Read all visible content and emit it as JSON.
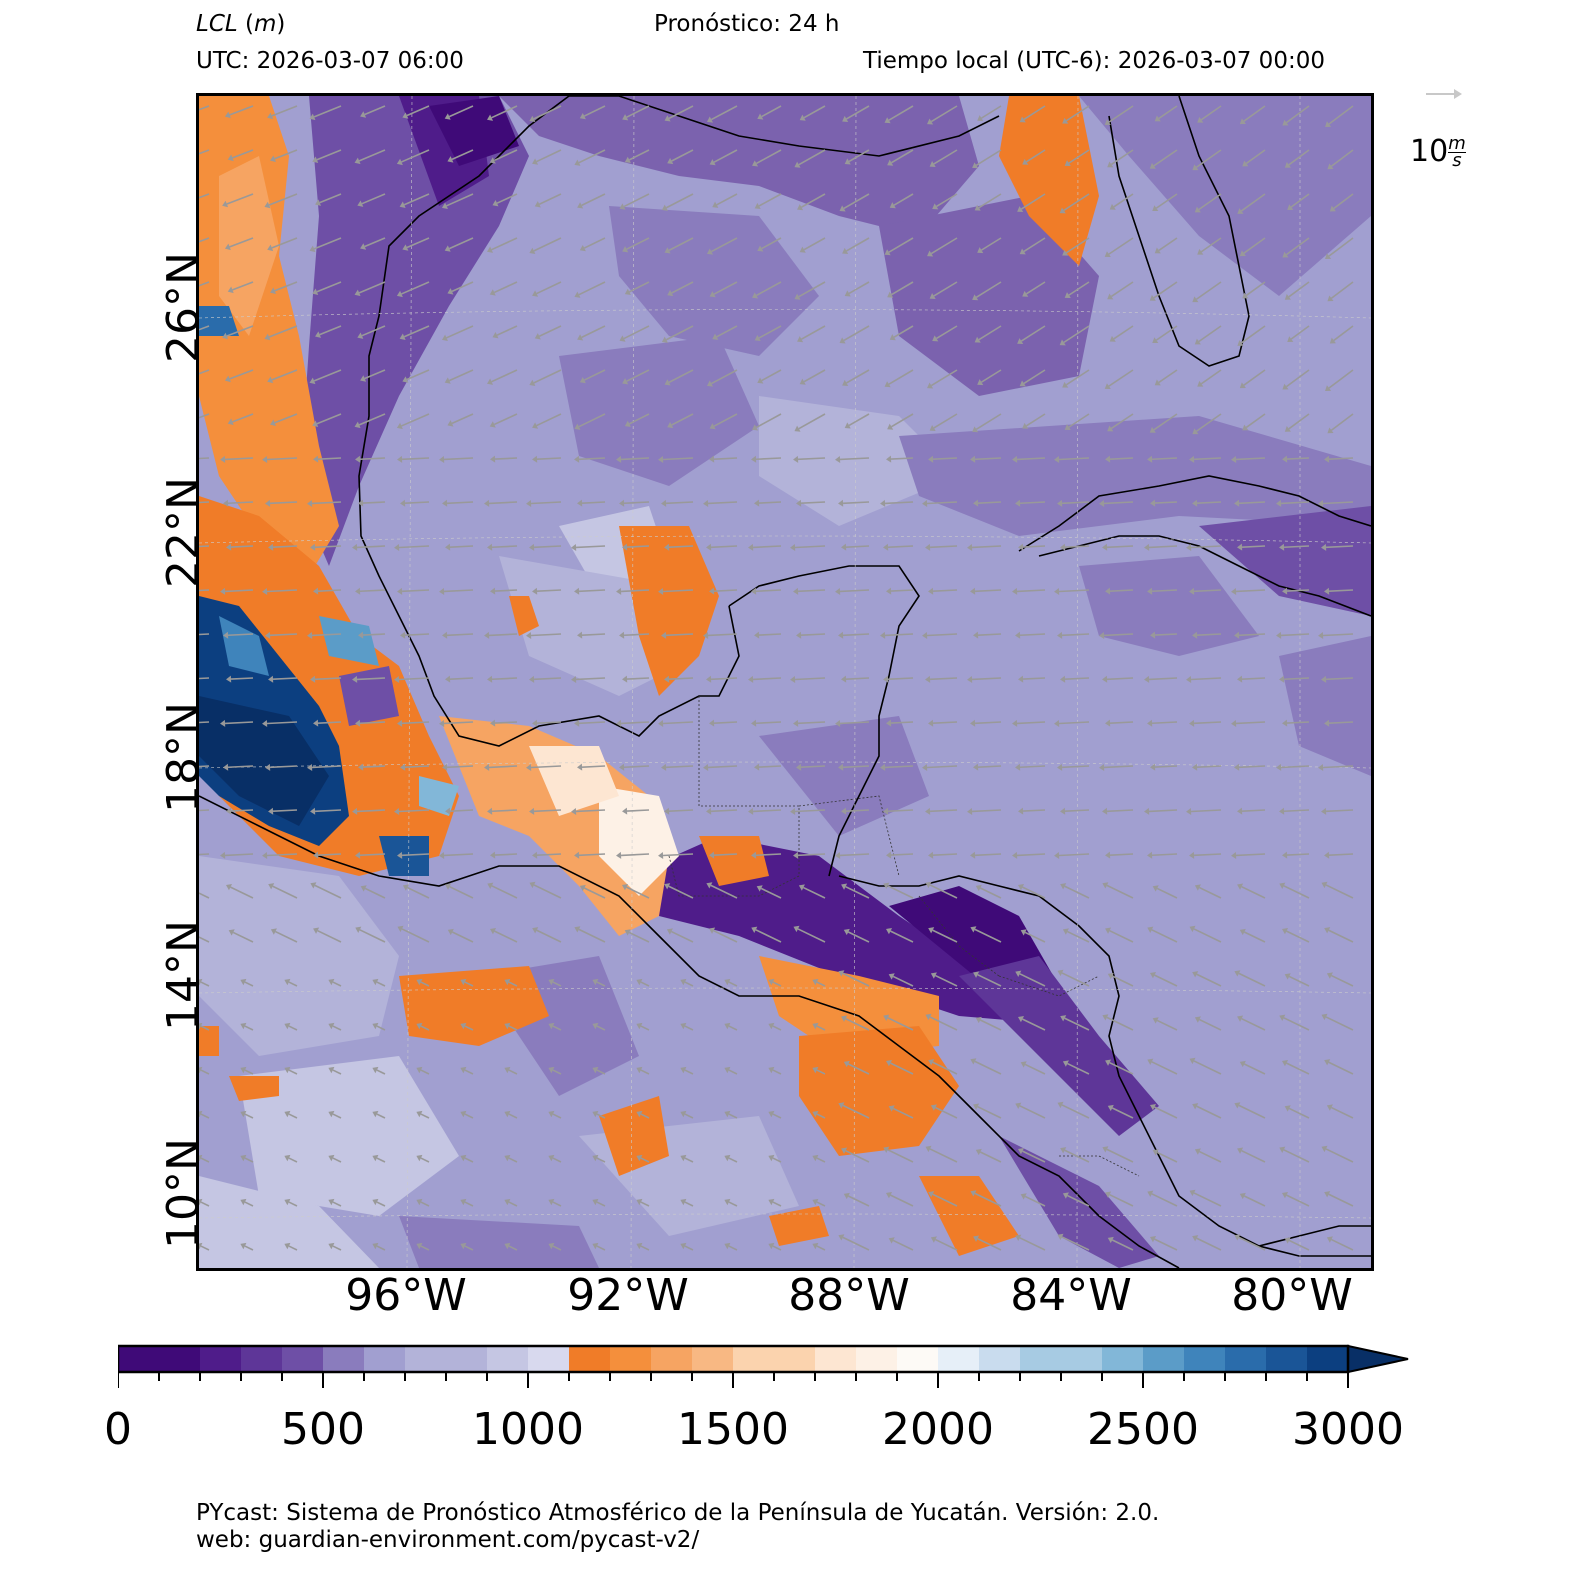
{
  "header": {
    "variable_name": "LCL",
    "variable_unit": "m",
    "forecast_label": "Pronóstico: 24 h",
    "utc_label": "UTC:  2026-03-07 06:00",
    "local_time_label": "Tiempo local (UTC-6): 2026-03-07 00:00"
  },
  "map": {
    "lat_labels": [
      "26°N",
      "22°N",
      "18°N",
      "14°N",
      "10°N"
    ],
    "lon_labels": [
      "96°W",
      "92°W",
      "88°W",
      "84°W",
      "80°W"
    ],
    "region": "Gulf of Mexico, southern Mexico, Yucatán Peninsula, Central America, Cuba, Florida",
    "wind_direction": "predominantly easterly to northeasterly (arrows pointing west/southwest)",
    "wind_arrow_color": "#999999",
    "coastline_color": "#000000"
  },
  "reference_vector": {
    "value": "10",
    "unit_num": "m",
    "unit_den": "s"
  },
  "colorbar": {
    "min": 0,
    "max": 3000,
    "step": 100,
    "tick_labels": [
      "0",
      "500",
      "1000",
      "1500",
      "2000",
      "2500",
      "3000"
    ],
    "extend": "max",
    "colors": [
      "#3f0a78",
      "#4f1c8a",
      "#5e3698",
      "#6e4fa6",
      "#8a7cbd",
      "#a19fd0",
      "#b3b3d9",
      "#c5c6e3",
      "#d8d9ee",
      "#f07c28",
      "#f48f3c",
      "#f6a462",
      "#f8b883",
      "#fbd3ae",
      "#fde6d2",
      "#fdf1e6",
      "#fdfaf6",
      "#e6eff8",
      "#c9dcee",
      "#a7cbe3",
      "#82b7d8",
      "#5b9cc8",
      "#3f84bb",
      "#2a6cab",
      "#1a5597",
      "#0c3f80",
      "#082f66"
    ]
  },
  "footer": {
    "line1": "PYcast: Sistema de Pronóstico Atmosférico de la Península de Yucatán. Versión: 2.0.",
    "line2": "web: guardian-environment.com/pycast-v2/"
  }
}
